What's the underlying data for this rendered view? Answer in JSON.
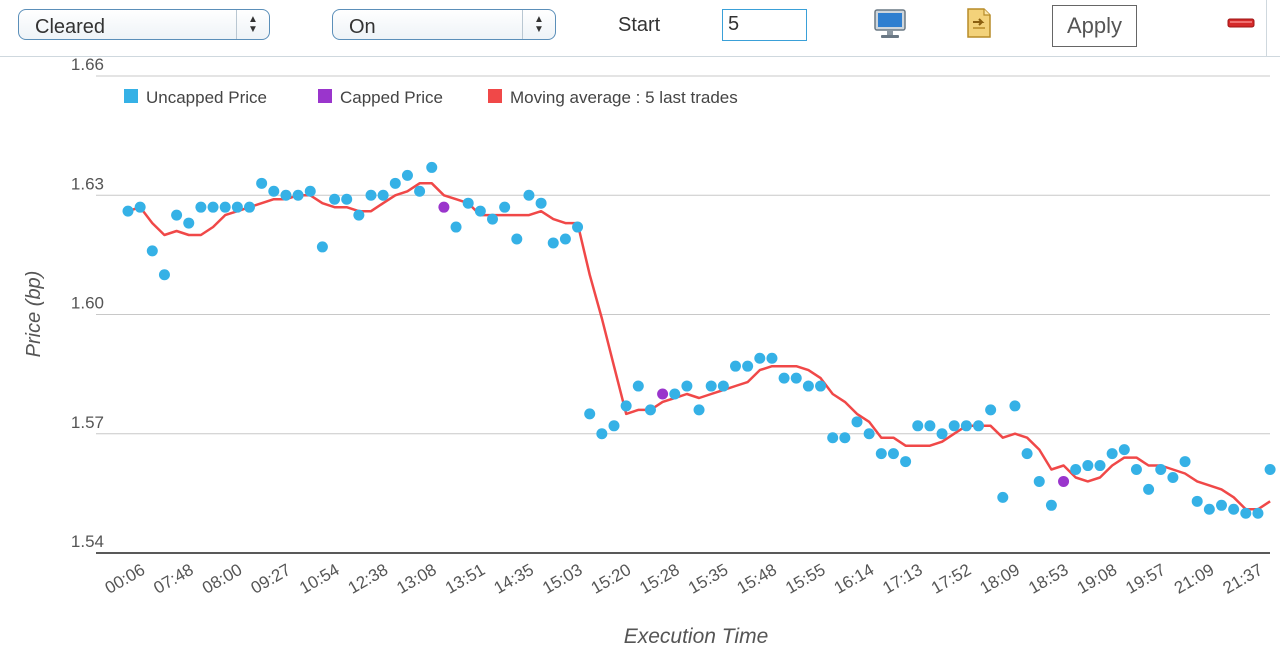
{
  "toolbar": {
    "select1_value": "Cleared",
    "select2_value": "On",
    "start_label": "Start",
    "start_value": "5",
    "apply_label": "Apply",
    "icons": [
      "monitor-icon",
      "export-icon",
      "close-icon"
    ]
  },
  "chart_data": {
    "type": "scatter",
    "title": "",
    "xlabel": "Execution Time",
    "ylabel": "Price (bp)",
    "ylim": [
      1.54,
      1.66
    ],
    "y_ticks": [
      "1.54",
      "1.57",
      "1.60",
      "1.63",
      "1.66"
    ],
    "y_tick_values": [
      1.54,
      1.57,
      1.6,
      1.63,
      1.66
    ],
    "x_tick_labels": [
      "00:06",
      "07:48",
      "08:00",
      "09:27",
      "10:54",
      "12:38",
      "13:08",
      "13:51",
      "14:35",
      "15:03",
      "15:20",
      "15:28",
      "15:35",
      "15:48",
      "15:55",
      "16:14",
      "17:13",
      "17:52",
      "18:09",
      "18:53",
      "19:08",
      "19:57",
      "21:09",
      "21:37"
    ],
    "x_tick_positions": [
      1,
      5,
      9,
      13,
      17,
      21,
      25,
      29,
      33,
      37,
      41,
      45,
      49,
      53,
      57,
      61,
      65,
      69,
      73,
      77,
      81,
      85,
      89,
      93
    ],
    "grid": true,
    "legend_position": "top-left",
    "colors": {
      "uncapped": "#35b1e6",
      "capped": "#9a35cc",
      "moving_avg": "#f04848",
      "grid": "#c8c8c8",
      "axis": "#222222"
    },
    "series": [
      {
        "name": "Uncapped Price",
        "points": [
          [
            0,
            1.626
          ],
          [
            1,
            1.627
          ],
          [
            2,
            1.616
          ],
          [
            3,
            1.61
          ],
          [
            4,
            1.625
          ],
          [
            5,
            1.623
          ],
          [
            6,
            1.627
          ],
          [
            7,
            1.627
          ],
          [
            8,
            1.627
          ],
          [
            9,
            1.627
          ],
          [
            10,
            1.627
          ],
          [
            11,
            1.633
          ],
          [
            12,
            1.631
          ],
          [
            13,
            1.63
          ],
          [
            14,
            1.63
          ],
          [
            15,
            1.631
          ],
          [
            16,
            1.617
          ],
          [
            17,
            1.629
          ],
          [
            18,
            1.629
          ],
          [
            19,
            1.625
          ],
          [
            20,
            1.63
          ],
          [
            21,
            1.63
          ],
          [
            22,
            1.633
          ],
          [
            23,
            1.635
          ],
          [
            24,
            1.631
          ],
          [
            25,
            1.637
          ],
          [
            27,
            1.622
          ],
          [
            28,
            1.628
          ],
          [
            29,
            1.626
          ],
          [
            30,
            1.624
          ],
          [
            31,
            1.627
          ],
          [
            32,
            1.619
          ],
          [
            33,
            1.63
          ],
          [
            34,
            1.628
          ],
          [
            35,
            1.618
          ],
          [
            36,
            1.619
          ],
          [
            37,
            1.622
          ],
          [
            38,
            1.575
          ],
          [
            39,
            1.57
          ],
          [
            40,
            1.572
          ],
          [
            41,
            1.577
          ],
          [
            42,
            1.582
          ],
          [
            43,
            1.576
          ],
          [
            45,
            1.58
          ],
          [
            46,
            1.582
          ],
          [
            47,
            1.576
          ],
          [
            48,
            1.582
          ],
          [
            49,
            1.582
          ],
          [
            50,
            1.587
          ],
          [
            51,
            1.587
          ],
          [
            52,
            1.589
          ],
          [
            53,
            1.589
          ],
          [
            54,
            1.584
          ],
          [
            55,
            1.584
          ],
          [
            56,
            1.582
          ],
          [
            57,
            1.582
          ],
          [
            58,
            1.569
          ],
          [
            59,
            1.569
          ],
          [
            60,
            1.573
          ],
          [
            61,
            1.57
          ],
          [
            62,
            1.565
          ],
          [
            63,
            1.565
          ],
          [
            64,
            1.563
          ],
          [
            65,
            1.572
          ],
          [
            66,
            1.572
          ],
          [
            67,
            1.57
          ],
          [
            68,
            1.572
          ],
          [
            69,
            1.572
          ],
          [
            70,
            1.572
          ],
          [
            71,
            1.576
          ],
          [
            72,
            1.554
          ],
          [
            73,
            1.577
          ],
          [
            74,
            1.565
          ],
          [
            75,
            1.558
          ],
          [
            76,
            1.552
          ],
          [
            78,
            1.561
          ],
          [
            79,
            1.562
          ],
          [
            80,
            1.562
          ],
          [
            81,
            1.565
          ],
          [
            82,
            1.566
          ],
          [
            83,
            1.561
          ],
          [
            84,
            1.556
          ],
          [
            85,
            1.561
          ],
          [
            86,
            1.559
          ],
          [
            87,
            1.563
          ],
          [
            88,
            1.553
          ],
          [
            89,
            1.551
          ],
          [
            90,
            1.552
          ],
          [
            91,
            1.551
          ],
          [
            92,
            1.55
          ],
          [
            93,
            1.55
          ],
          [
            94,
            1.561
          ]
        ]
      },
      {
        "name": "Capped Price",
        "points": [
          [
            26,
            1.627
          ],
          [
            44,
            1.58
          ],
          [
            77,
            1.558
          ]
        ]
      },
      {
        "name": "Moving average : 5 last trades",
        "points": [
          [
            0,
            1.626
          ],
          [
            1,
            1.627
          ],
          [
            2,
            1.623
          ],
          [
            3,
            1.62
          ],
          [
            4,
            1.621
          ],
          [
            5,
            1.62
          ],
          [
            6,
            1.62
          ],
          [
            7,
            1.622
          ],
          [
            8,
            1.625
          ],
          [
            9,
            1.626
          ],
          [
            10,
            1.627
          ],
          [
            11,
            1.628
          ],
          [
            12,
            1.629
          ],
          [
            13,
            1.629
          ],
          [
            14,
            1.63
          ],
          [
            15,
            1.63
          ],
          [
            16,
            1.628
          ],
          [
            17,
            1.627
          ],
          [
            18,
            1.627
          ],
          [
            19,
            1.626
          ],
          [
            20,
            1.626
          ],
          [
            21,
            1.628
          ],
          [
            22,
            1.63
          ],
          [
            23,
            1.631
          ],
          [
            24,
            1.633
          ],
          [
            25,
            1.633
          ],
          [
            26,
            1.63
          ],
          [
            27,
            1.629
          ],
          [
            28,
            1.628
          ],
          [
            29,
            1.625
          ],
          [
            30,
            1.625
          ],
          [
            31,
            1.625
          ],
          [
            32,
            1.625
          ],
          [
            33,
            1.625
          ],
          [
            34,
            1.626
          ],
          [
            35,
            1.624
          ],
          [
            36,
            1.623
          ],
          [
            37,
            1.623
          ],
          [
            38,
            1.61
          ],
          [
            39,
            1.599
          ],
          [
            40,
            1.587
          ],
          [
            41,
            1.575
          ],
          [
            42,
            1.576
          ],
          [
            43,
            1.576
          ],
          [
            44,
            1.578
          ],
          [
            45,
            1.579
          ],
          [
            46,
            1.58
          ],
          [
            47,
            1.579
          ],
          [
            48,
            1.58
          ],
          [
            49,
            1.581
          ],
          [
            50,
            1.582
          ],
          [
            51,
            1.583
          ],
          [
            52,
            1.586
          ],
          [
            53,
            1.587
          ],
          [
            54,
            1.587
          ],
          [
            55,
            1.587
          ],
          [
            56,
            1.586
          ],
          [
            57,
            1.584
          ],
          [
            58,
            1.58
          ],
          [
            59,
            1.578
          ],
          [
            60,
            1.575
          ],
          [
            61,
            1.573
          ],
          [
            62,
            1.569
          ],
          [
            63,
            1.569
          ],
          [
            64,
            1.567
          ],
          [
            65,
            1.567
          ],
          [
            66,
            1.567
          ],
          [
            67,
            1.568
          ],
          [
            68,
            1.57
          ],
          [
            69,
            1.572
          ],
          [
            70,
            1.572
          ],
          [
            71,
            1.572
          ],
          [
            72,
            1.569
          ],
          [
            73,
            1.57
          ],
          [
            74,
            1.569
          ],
          [
            75,
            1.566
          ],
          [
            76,
            1.561
          ],
          [
            77,
            1.562
          ],
          [
            78,
            1.559
          ],
          [
            79,
            1.558
          ],
          [
            80,
            1.559
          ],
          [
            81,
            1.562
          ],
          [
            82,
            1.564
          ],
          [
            83,
            1.564
          ],
          [
            84,
            1.562
          ],
          [
            85,
            1.562
          ],
          [
            86,
            1.561
          ],
          [
            87,
            1.56
          ],
          [
            88,
            1.558
          ],
          [
            89,
            1.557
          ],
          [
            90,
            1.556
          ],
          [
            91,
            1.554
          ],
          [
            92,
            1.551
          ],
          [
            93,
            1.551
          ],
          [
            94,
            1.553
          ]
        ]
      }
    ]
  }
}
